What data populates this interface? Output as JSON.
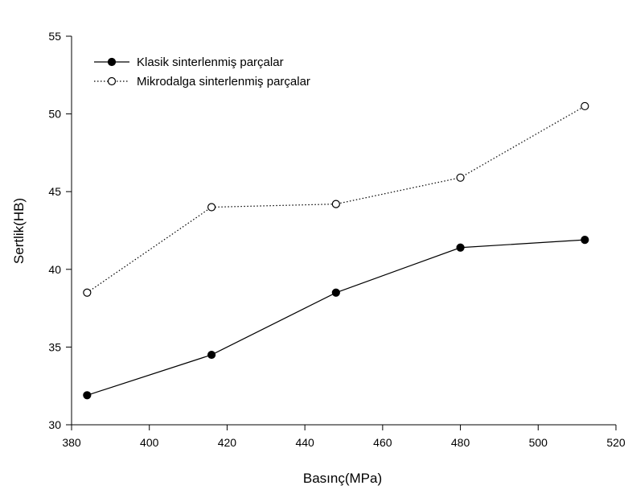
{
  "chart_data": {
    "type": "line",
    "title": "",
    "xlabel": "Basınç(MPa)",
    "ylabel": "Sertlik(HB)",
    "xlim": [
      380,
      520
    ],
    "ylim": [
      30,
      55
    ],
    "x_ticks": [
      380,
      400,
      420,
      440,
      460,
      480,
      500,
      520
    ],
    "y_ticks": [
      30,
      35,
      40,
      45,
      50,
      55
    ],
    "grid": false,
    "legend_position": "top-left",
    "x": [
      384,
      416,
      448,
      480,
      512
    ],
    "series": [
      {
        "name": "Klasik sinterlenmiş parçalar",
        "values": [
          31.9,
          34.5,
          38.5,
          41.4,
          41.9
        ],
        "marker": "filled-circle",
        "line_style": "solid",
        "color": "#000000"
      },
      {
        "name": "Mikrodalga sinterlenmiş parçalar",
        "values": [
          38.5,
          44.0,
          44.2,
          45.9,
          50.5
        ],
        "marker": "open-circle",
        "line_style": "dotted",
        "color": "#000000"
      }
    ]
  }
}
